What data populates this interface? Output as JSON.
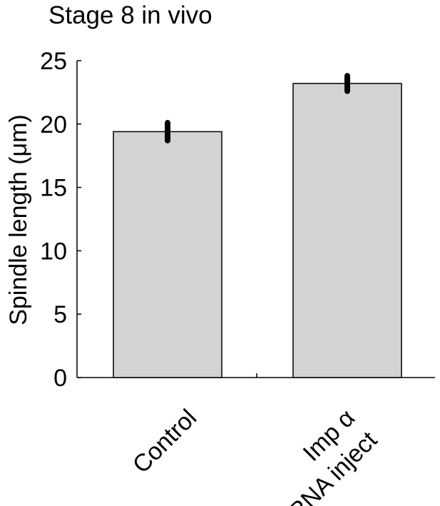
{
  "chart_data": {
    "type": "bar",
    "title": "Stage 8 in vivo",
    "xlabel": "",
    "ylabel": "Spindle length (μm)",
    "ylim": [
      0,
      25
    ],
    "yticks": [
      0,
      5,
      10,
      15,
      20,
      25
    ],
    "categories": [
      [
        "Control"
      ],
      [
        "Imp α",
        "RNA inject"
      ]
    ],
    "values": [
      19.4,
      23.2
    ],
    "errors": [
      0.7,
      0.6
    ],
    "grid": false,
    "colors": {
      "bar_fill": "#d3d3d3",
      "bar_stroke": "#000000",
      "error_bar": "#000000"
    }
  }
}
